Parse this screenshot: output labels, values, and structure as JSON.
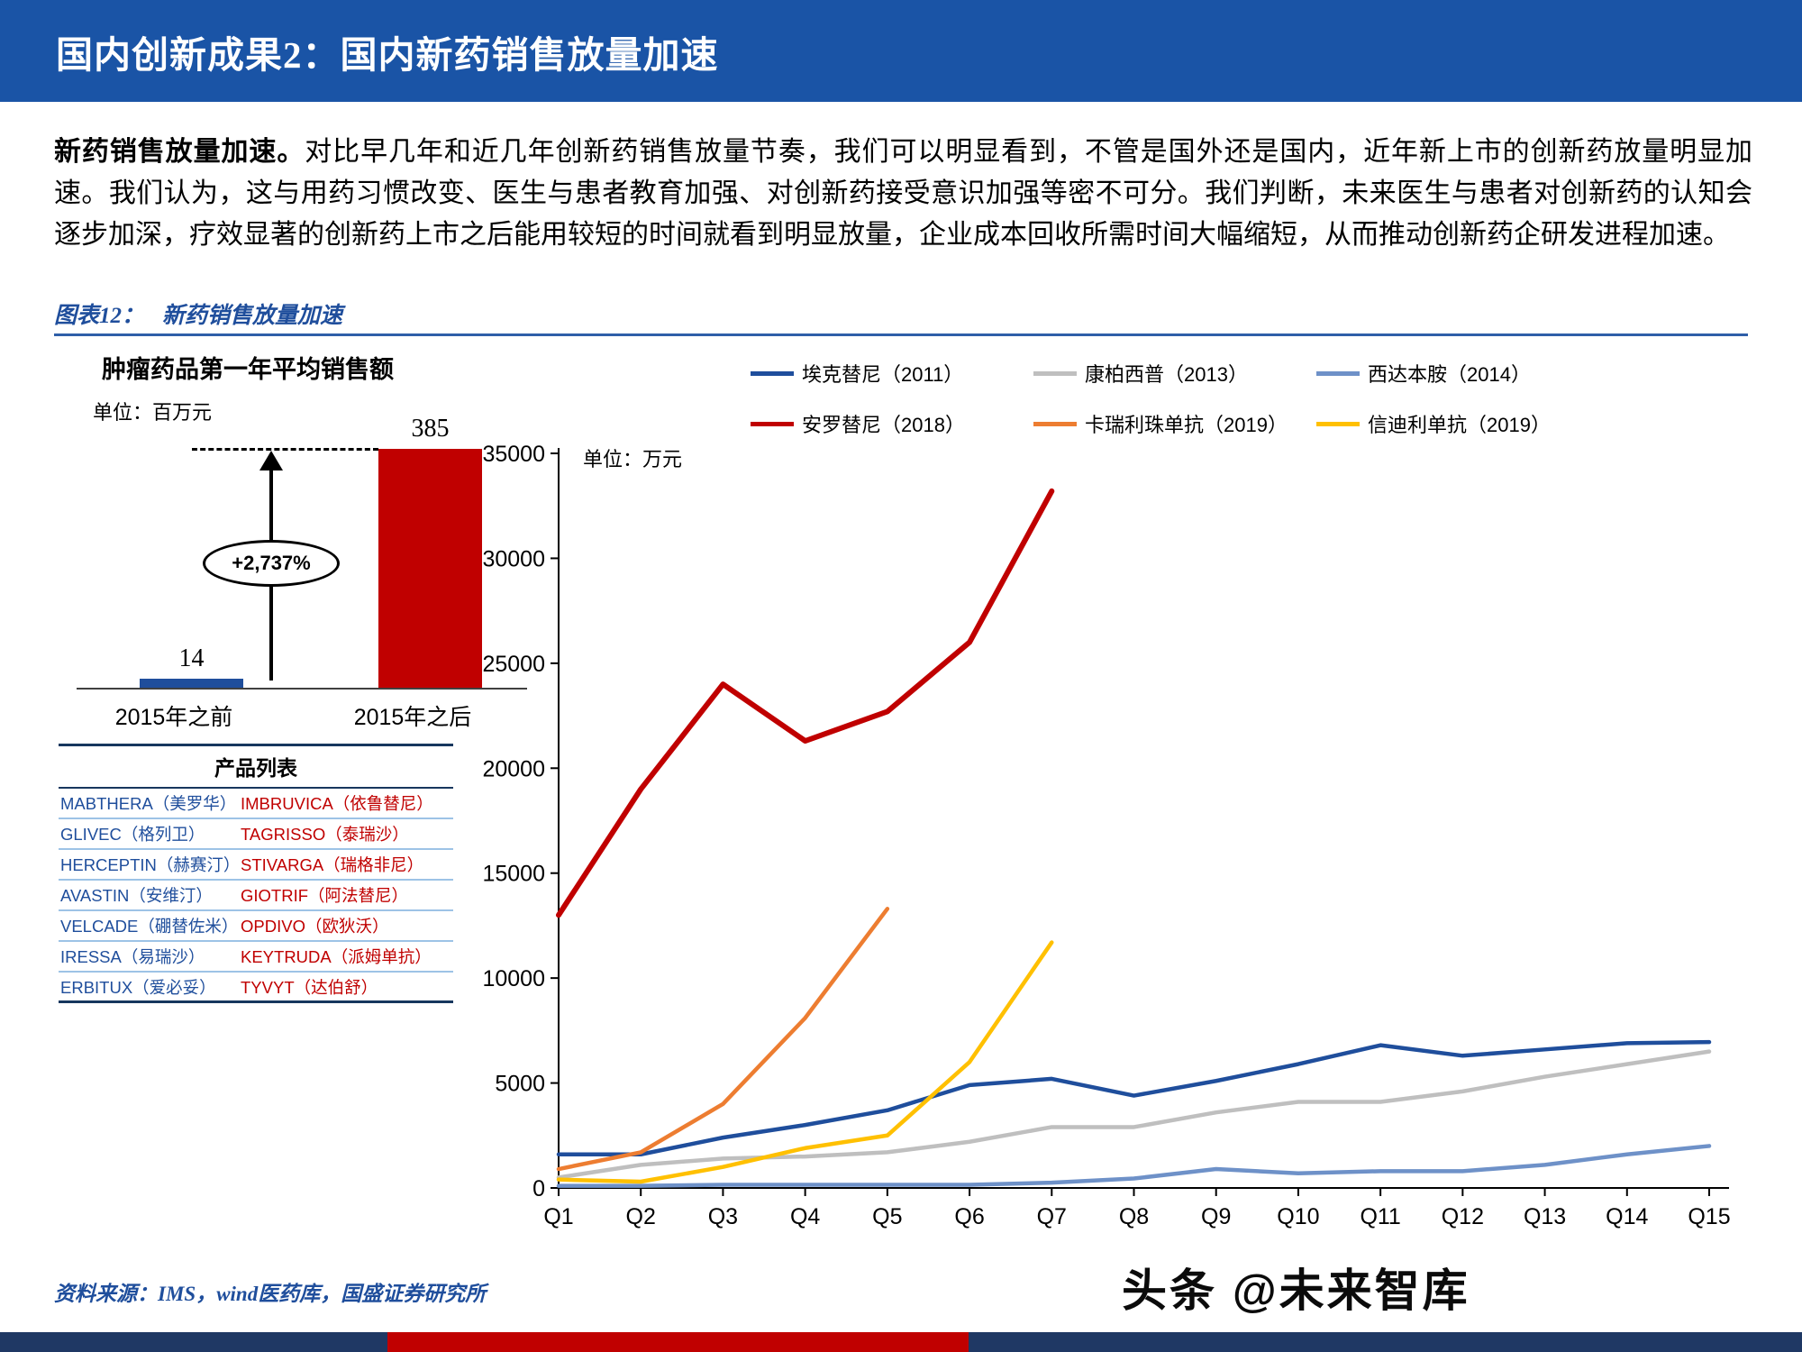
{
  "header": {
    "title": "国内创新成果2：国内新药销售放量加速"
  },
  "body": {
    "lead": "新药销售放量加速。",
    "text": "对比早几年和近几年创新药销售放量节奏，我们可以明显看到，不管是国外还是国内，近年新上市的创新药放量明显加速。我们认为，这与用药习惯改变、医生与患者教育加强、对创新药接受意识加强等密不可分。我们判断，未来医生与患者对创新药的认知会逐步加深，疗效显著的创新药上市之后能用较短的时间就看到明显放量，企业成本回收所需时间大幅缩短，从而推动创新药企研发进程加速。"
  },
  "figure": {
    "caption_label": "图表12：",
    "caption_text": "新药销售放量加速",
    "source": "资料来源：IMS，wind医药库，国盛证券研究所"
  },
  "watermark": "头条 @未来智库",
  "colors": {
    "header_blue": "#1A54A6",
    "accent_blue": "#1F4E9C",
    "deep_red": "#C00000",
    "rule_blue": "#2F5FA8",
    "footer_navy": "#1F3864",
    "table_separator_blue": "#9DC3E6"
  },
  "product_table": {
    "header": "产品列表",
    "rows": [
      {
        "left": "MABTHERA（美罗华）",
        "right": "IMBRUVICA（依鲁替尼）"
      },
      {
        "left": "GLIVEC（格列卫）",
        "right": "TAGRISSO（泰瑞沙）"
      },
      {
        "left": "HERCEPTIN（赫赛汀）",
        "right": "STIVARGA（瑞格非尼）"
      },
      {
        "left": "AVASTIN（安维汀）",
        "right": "GIOTRIF（阿法替尼）"
      },
      {
        "left": "VELCADE（硼替佐米）",
        "right": "OPDIVO（欧狄沃）"
      },
      {
        "left": "IRESSA（易瑞沙）",
        "right": "KEYTRUDA（派姆单抗）"
      },
      {
        "left": "ERBITUX（爱必妥）",
        "right": "TYVYT（达伯舒）"
      }
    ]
  },
  "chart_data": [
    {
      "type": "bar",
      "title": "肿瘤药品第一年平均销售额",
      "unit": "单位：百万元",
      "categories": [
        "2015年之前",
        "2015年之后"
      ],
      "values": [
        14,
        385
      ],
      "value_labels": [
        "14",
        "385"
      ],
      "growth_label": "+2,737%",
      "colors": [
        "#1F4E9C",
        "#C00000"
      ],
      "ylim": [
        0,
        400
      ],
      "grid": false
    },
    {
      "type": "line",
      "unit": "单位：万元",
      "x": [
        "Q1",
        "Q2",
        "Q3",
        "Q4",
        "Q5",
        "Q6",
        "Q7",
        "Q8",
        "Q9",
        "Q10",
        "Q11",
        "Q12",
        "Q13",
        "Q14",
        "Q15"
      ],
      "ylim": [
        0,
        35000
      ],
      "ytick_step": 5000,
      "grid": false,
      "legend_position": "top",
      "series": [
        {
          "name": "埃克替尼（2011）",
          "color": "#1F4E9C",
          "values": [
            1600,
            1600,
            2400,
            3000,
            3700,
            4900,
            5200,
            4400,
            5100,
            5900,
            6800,
            6300,
            6600,
            6900,
            6950
          ]
        },
        {
          "name": "康柏西普（2013）",
          "color": "#BFBFBF",
          "values": [
            500,
            1100,
            1400,
            1500,
            1700,
            2200,
            2900,
            2900,
            3600,
            4100,
            4100,
            4600,
            5300,
            5900,
            6500
          ]
        },
        {
          "name": "西达本胺（2014）",
          "color": "#6E91C8",
          "values": [
            100,
            100,
            150,
            150,
            150,
            150,
            250,
            450,
            900,
            700,
            800,
            800,
            1100,
            1600,
            2000
          ]
        },
        {
          "name": "安罗替尼（2018）",
          "color": "#C00000",
          "values": [
            13000,
            19000,
            24000,
            21300,
            22700,
            26000,
            33200
          ]
        },
        {
          "name": "卡瑞利珠单抗（2019）",
          "color": "#ED7D31",
          "values": [
            900,
            1700,
            4000,
            8100,
            13300
          ]
        },
        {
          "name": "信迪利单抗（2019）",
          "color": "#FFC000",
          "values": [
            400,
            300,
            1000,
            1900,
            2500,
            6000,
            11700
          ]
        }
      ]
    }
  ]
}
